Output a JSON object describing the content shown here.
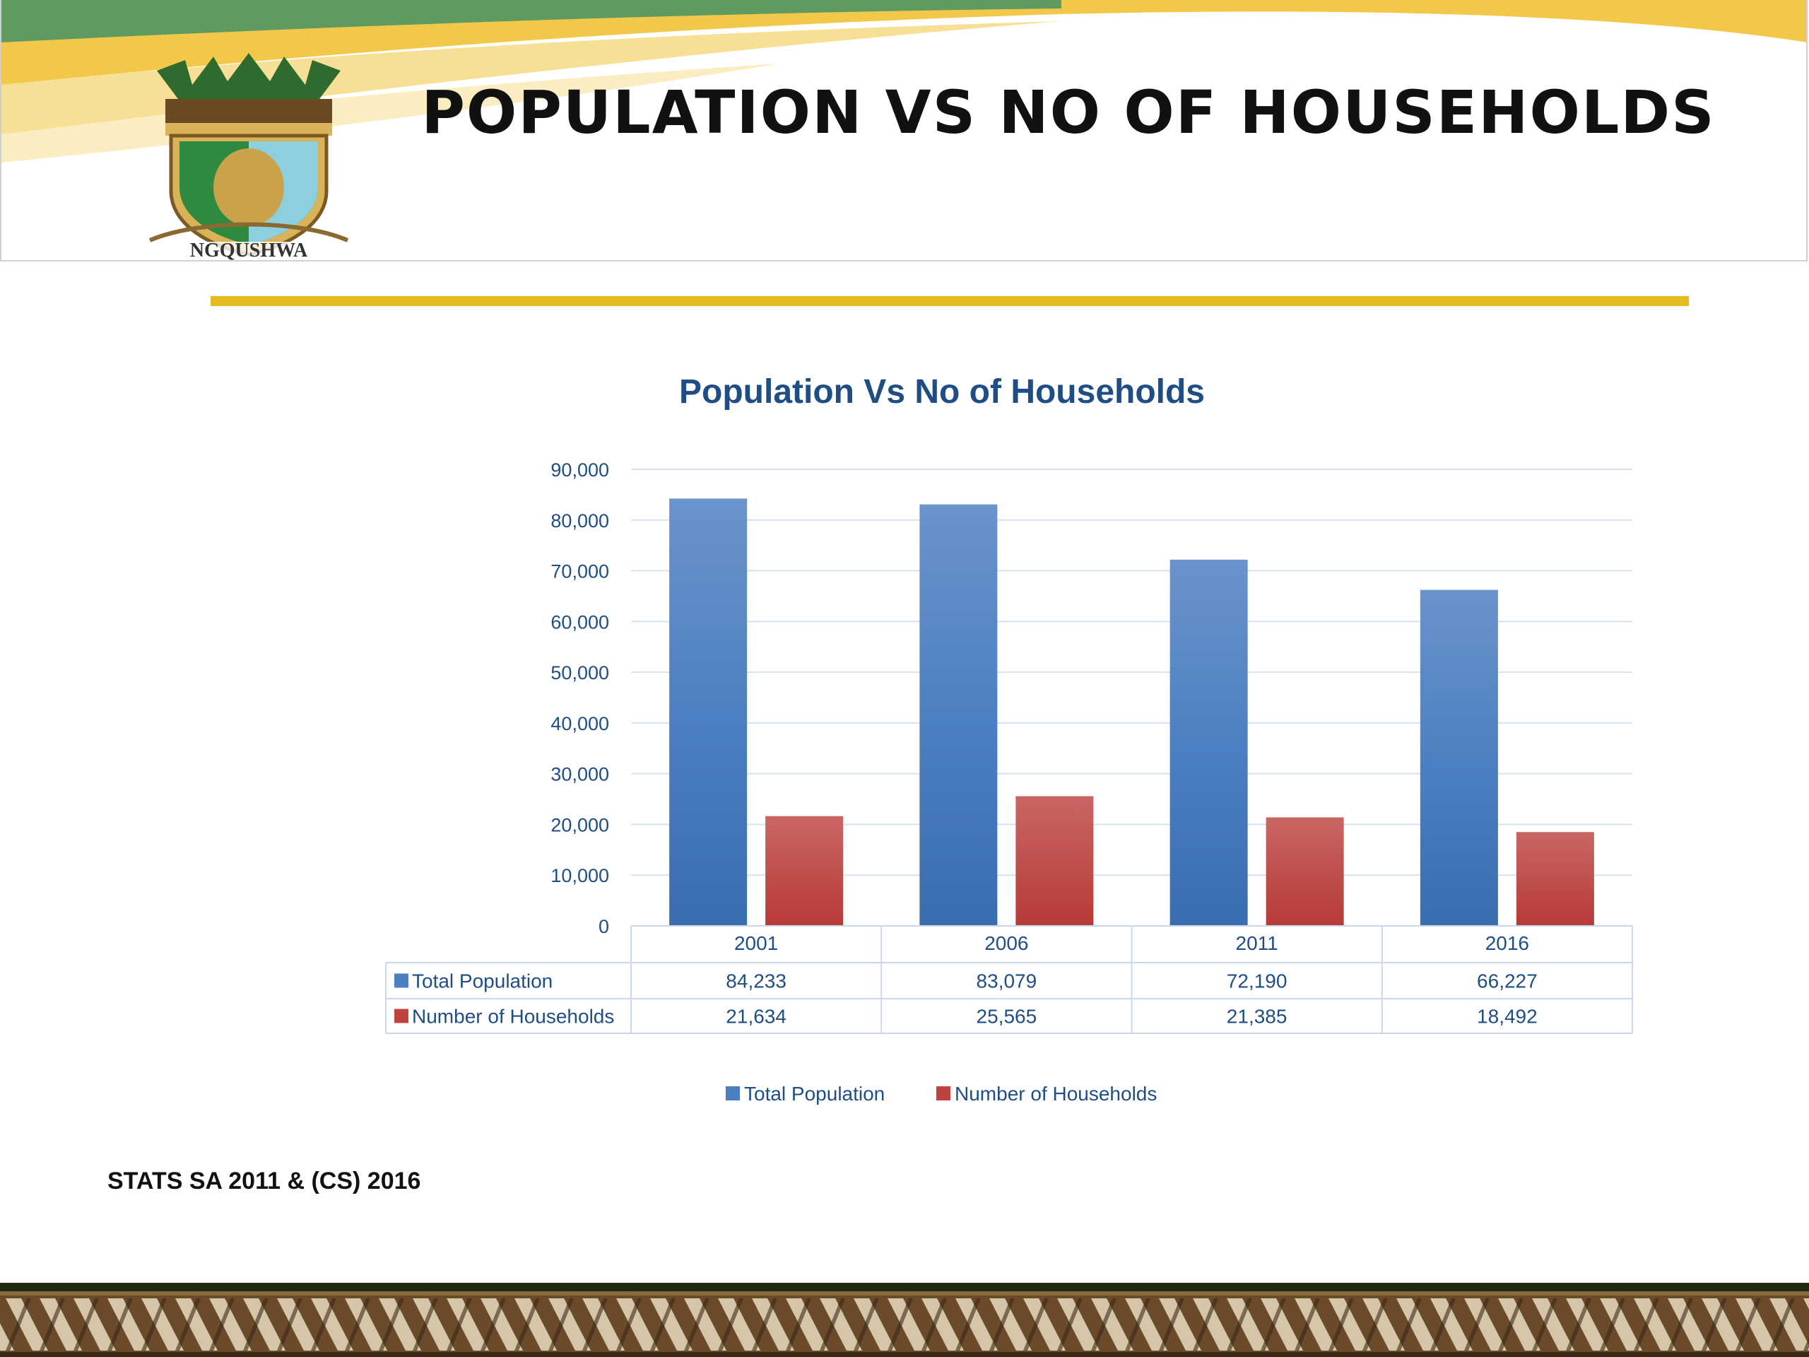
{
  "slide": {
    "title": "POPULATION VS NO OF HOUSEHOLDS",
    "logo_text": "NGQUSHWA",
    "source": "STATS SA 2011 & (CS) 2016"
  },
  "colors": {
    "accent_yellow": "#e7bb1f",
    "accent_green": "#5f9a5e",
    "series_population": "#4a7fc4",
    "series_households": "#c0423f",
    "text_blue": "#1f4e87"
  },
  "chart_data": {
    "type": "bar",
    "title": "Population Vs No of Households",
    "categories": [
      "2001",
      "2006",
      "2011",
      "2016"
    ],
    "series": [
      {
        "name": "Total Population",
        "values": [
          84233,
          83079,
          72190,
          66227
        ],
        "labels": [
          "84,233",
          "83,079",
          "72,190",
          "66,227"
        ]
      },
      {
        "name": "Number of Households",
        "values": [
          21634,
          25565,
          21385,
          18492
        ],
        "labels": [
          "21,634",
          "25,565",
          "21,385",
          "18,492"
        ]
      }
    ],
    "ylim": [
      0,
      90000
    ],
    "yticks": [
      0,
      10000,
      20000,
      30000,
      40000,
      50000,
      60000,
      70000,
      80000,
      90000
    ],
    "ytick_labels": [
      "0",
      "10,000",
      "20,000",
      "30,000",
      "40,000",
      "50,000",
      "60,000",
      "70,000",
      "80,000",
      "90,000"
    ],
    "grid": true,
    "legend": "bottom",
    "data_table": true
  }
}
